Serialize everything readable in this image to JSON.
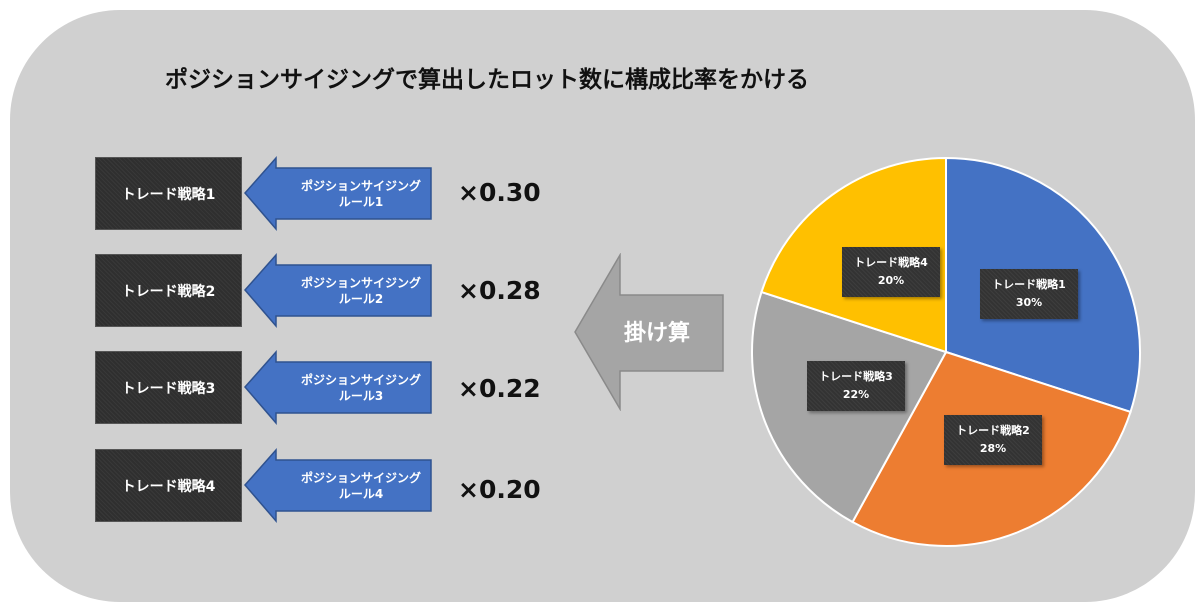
{
  "title": "ポジションサイジングで算出したロット数に構成比率をかける",
  "rows": [
    {
      "strategy": "トレード戦略1",
      "rule_line1": "ポジションサイジング",
      "rule_line2": "ルール1",
      "multiplier": "×0.30"
    },
    {
      "strategy": "トレード戦略2",
      "rule_line1": "ポジションサイジング",
      "rule_line2": "ルール2",
      "multiplier": "×0.28"
    },
    {
      "strategy": "トレード戦略3",
      "rule_line1": "ポジションサイジング",
      "rule_line2": "ルール3",
      "multiplier": "×0.22"
    },
    {
      "strategy": "トレード戦略4",
      "rule_line1": "ポジションサイジング",
      "rule_line2": "ルール4",
      "multiplier": "×0.20"
    }
  ],
  "arrow_label": "掛け算",
  "chart_data": {
    "type": "pie",
    "categories": [
      "トレード戦略1",
      "トレード戦略2",
      "トレード戦略3",
      "トレード戦略4"
    ],
    "values": [
      30,
      28,
      22,
      20
    ],
    "labels": [
      "30%",
      "28%",
      "22%",
      "20%"
    ],
    "colors": [
      "#4472c4",
      "#ed7d31",
      "#a5a5a5",
      "#ffc000"
    ]
  }
}
